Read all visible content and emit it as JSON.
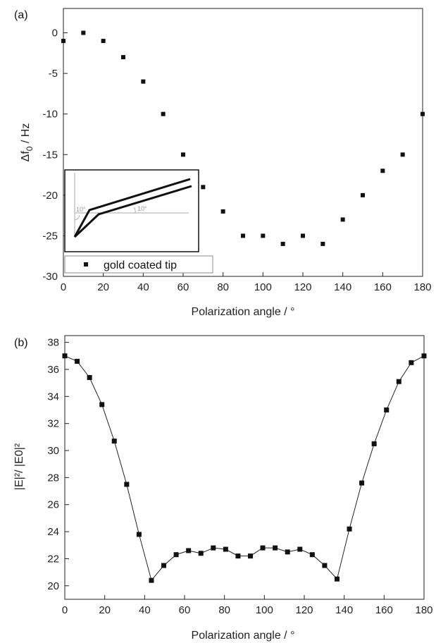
{
  "chart_data": [
    {
      "type": "scatter",
      "panel_label": "(a)",
      "xlabel": "Polarization angle / °",
      "ylabel_main": "Δf",
      "ylabel_sub": "0",
      "ylabel_unit": " / Hz",
      "xlim": [
        0,
        180
      ],
      "ylim": [
        -30,
        3
      ],
      "xticks": [
        0,
        20,
        40,
        60,
        80,
        100,
        120,
        140,
        160,
        180
      ],
      "yticks": [
        0,
        -5,
        -10,
        -15,
        -20,
        -25,
        -30
      ],
      "grid": false,
      "legend": {
        "entry": "gold coated tip",
        "position": "bottom-left"
      },
      "inset": {
        "angle_label_1": "10°",
        "angle_label_2": "10°"
      },
      "series": [
        {
          "name": "gold coated tip",
          "x": [
            0,
            10,
            20,
            30,
            40,
            50,
            60,
            70,
            80,
            90,
            100,
            110,
            120,
            130,
            140,
            150,
            160,
            170,
            180
          ],
          "y": [
            -1,
            0,
            -1,
            -3,
            -6,
            -10,
            -15,
            -19,
            -22,
            -25,
            -25,
            -26,
            -25,
            -26,
            -23,
            -20,
            -17,
            -15,
            -10
          ]
        }
      ]
    },
    {
      "type": "line",
      "panel_label": "(b)",
      "xlabel": "Polarization angle / °",
      "ylabel": "|E|²/ |E0|²",
      "xlim": [
        0,
        180
      ],
      "ylim": [
        19,
        38.5
      ],
      "xticks": [
        0,
        20,
        40,
        60,
        80,
        100,
        120,
        140,
        160,
        180
      ],
      "yticks": [
        20,
        22,
        24,
        26,
        28,
        30,
        32,
        34,
        36,
        38
      ],
      "grid": false,
      "series": [
        {
          "x": [
            0,
            6.2,
            12.4,
            18.6,
            24.8,
            31,
            37.2,
            43.4,
            49.6,
            55.8,
            62,
            68.2,
            74.4,
            80.6,
            86.8,
            93,
            99.2,
            105.4,
            111.6,
            117.8,
            124,
            130.2,
            136.4,
            142.6,
            148.8,
            155,
            161.2,
            167.4,
            173.6,
            180
          ],
          "y": [
            37.0,
            36.6,
            35.4,
            33.4,
            30.7,
            27.5,
            23.8,
            20.4,
            21.5,
            22.3,
            22.6,
            22.4,
            22.8,
            22.7,
            22.2,
            22.2,
            22.8,
            22.8,
            22.5,
            22.7,
            22.3,
            21.5,
            20.5,
            24.2,
            27.6,
            30.5,
            33.0,
            35.1,
            36.5,
            37.0
          ]
        }
      ]
    }
  ]
}
